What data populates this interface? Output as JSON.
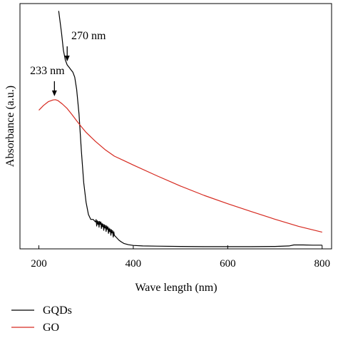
{
  "chart_data": {
    "type": "line",
    "xlabel": "Wave length (nm)",
    "ylabel": "Absorbance (a.u.)",
    "xlim": [
      160,
      820
    ],
    "ylim": [
      0,
      1.0
    ],
    "xticks": [
      200,
      400,
      600,
      800
    ],
    "xtick_labels": [
      "200",
      "400",
      "600",
      "800"
    ],
    "show_y_tick_labels": false,
    "grid": false,
    "legend_position": "bottom-left",
    "series": [
      {
        "name": "GQDs",
        "color": "#000000",
        "x": [
          242,
          248,
          252,
          256,
          260,
          264,
          268,
          272,
          276,
          280,
          285,
          290,
          295,
          300,
          305,
          310,
          315,
          320,
          325,
          330,
          335,
          340,
          345,
          350,
          355,
          360,
          365,
          370,
          375,
          380,
          390,
          400,
          420,
          450,
          500,
          550,
          600,
          650,
          700,
          730,
          740,
          760,
          780,
          800
        ],
        "y": [
          0.97,
          0.88,
          0.81,
          0.77,
          0.75,
          0.74,
          0.73,
          0.72,
          0.7,
          0.65,
          0.55,
          0.4,
          0.27,
          0.19,
          0.14,
          0.12,
          0.12,
          0.11,
          0.1,
          0.1,
          0.09,
          0.085,
          0.08,
          0.07,
          0.065,
          0.055,
          0.045,
          0.035,
          0.028,
          0.022,
          0.017,
          0.014,
          0.012,
          0.011,
          0.01,
          0.009,
          0.009,
          0.009,
          0.01,
          0.012,
          0.016,
          0.016,
          0.015,
          0.015
        ]
      },
      {
        "name": "GO",
        "color": "#d62a20",
        "x": [
          200,
          210,
          220,
          230,
          235,
          240,
          250,
          260,
          270,
          280,
          290,
          300,
          320,
          340,
          360,
          380,
          400,
          450,
          500,
          550,
          600,
          650,
          700,
          750,
          800
        ],
        "y": [
          0.565,
          0.585,
          0.6,
          0.607,
          0.608,
          0.605,
          0.59,
          0.572,
          0.548,
          0.522,
          0.498,
          0.475,
          0.438,
          0.405,
          0.378,
          0.36,
          0.342,
          0.298,
          0.256,
          0.218,
          0.184,
          0.152,
          0.121,
          0.092,
          0.068
        ]
      }
    ],
    "annotations": [
      {
        "text": "233 nm",
        "x": 233,
        "y": 0.608
      },
      {
        "text": "270 nm",
        "x": 260,
        "y": 0.75
      }
    ]
  }
}
